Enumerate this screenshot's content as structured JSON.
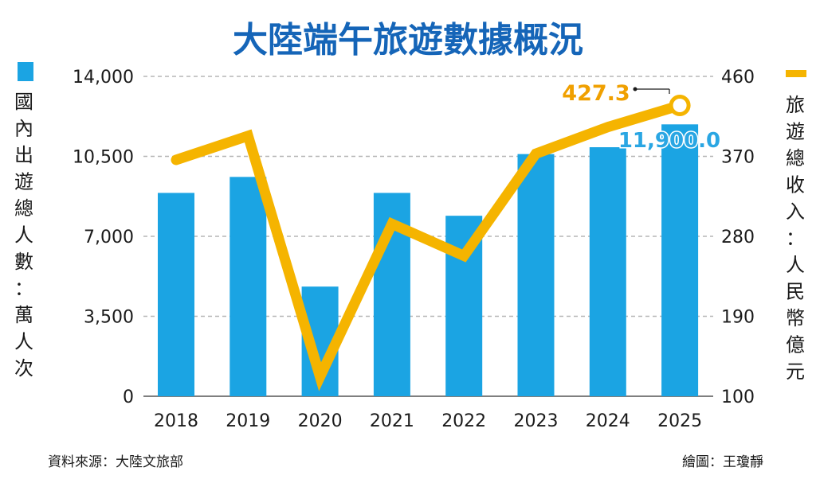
{
  "colors": {
    "bar": "#1ba4e3",
    "line": "#f5b400",
    "title": "#1565b8",
    "grid": "#b5b5b5",
    "text": "#1a1a1a",
    "annot_line": "#f0a000",
    "annot_bar": "#2aa6e3"
  },
  "chart_data": {
    "type": "bar+line",
    "title": "大陸端午旅遊數據概況",
    "categories": [
      "2018",
      "2019",
      "2020",
      "2021",
      "2022",
      "2023",
      "2024",
      "2025"
    ],
    "series": [
      {
        "name": "國內出遊總人數：萬人次",
        "type": "bar",
        "axis": "left",
        "values": [
          8900,
          9600,
          4800,
          8900,
          7900,
          10600,
          10900,
          11900.0
        ]
      },
      {
        "name": "旅遊總收入：人民幣億元",
        "type": "line",
        "axis": "right",
        "values": [
          366,
          393,
          122,
          294,
          258,
          373,
          403,
          427.3
        ]
      }
    ],
    "left_axis": {
      "label": "國內出遊總人數：萬人次",
      "ylim": [
        0,
        14000
      ],
      "ticks": [
        "0",
        "3,500",
        "7,000",
        "10,500",
        "14,000"
      ],
      "tick_values": [
        0,
        3500,
        7000,
        10500,
        14000
      ]
    },
    "right_axis": {
      "label": "旅遊總收入：人民幣億元",
      "ylim": [
        100,
        460
      ],
      "ticks": [
        "100",
        "190",
        "280",
        "370",
        "460"
      ],
      "tick_values": [
        100,
        190,
        280,
        370,
        460
      ]
    },
    "annotations": {
      "line_last": "427.3",
      "bar_last": "11,900.0"
    },
    "legend": {
      "left": "bar swatch, top-left",
      "right": "line swatch, top-right"
    },
    "grid": true
  },
  "footer": {
    "source": "資料來源：大陸文旅部",
    "credit": "繪圖：王瓊靜"
  }
}
